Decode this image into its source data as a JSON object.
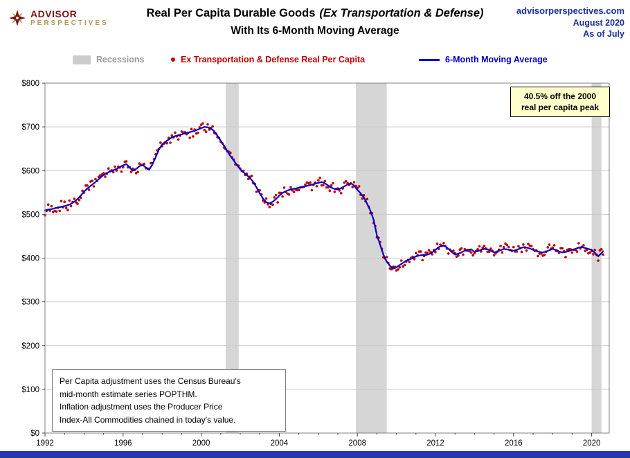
{
  "header": {
    "logo_line1": "ADVISOR",
    "logo_line2": "PERSPECTIVES",
    "title_main": "Real Per Capita Durable Goods",
    "title_italic": "(Ex Transportation & Defense)",
    "title_line2": "With Its 6-Month Moving Average",
    "site": "advisorperspectives.com",
    "date": "August 2020",
    "asof": "As of July"
  },
  "legend": {
    "recessions": "Recessions",
    "series_scatter": "Ex Transportation & Defense Real Per Capita",
    "series_line": "6-Month Moving Average"
  },
  "annotation": {
    "line1": "40.5% off the 2000",
    "line2": "real per capita peak"
  },
  "info_box": {
    "lines": [
      "Per Capita adjustment uses the Census Bureau's",
      "mid-month estimate series POPTHM.",
      "Inflation adjustment uses the Producer Price",
      "Index-All Commodities chained in today's value."
    ]
  },
  "colors": {
    "scatter": "#c00000",
    "ma_line": "#0000cc",
    "recession_band": "#d6d6d6",
    "grid": "#c9c9c9",
    "plot_border": "#7f7f7f",
    "annotation_bg": "#ffffcc",
    "header_blue": "#1b309c",
    "brand_red": "#7b1416",
    "brand_gold": "#b09a5b",
    "bottom_bar": "#2936b0"
  },
  "chart_data": {
    "type": "scatter",
    "title": "Real Per Capita Durable Goods (Ex Transportation & Defense) With Its 6-Month Moving Average",
    "xlabel": "",
    "ylabel": "",
    "xlim": [
      1992,
      2020.9
    ],
    "ylim": [
      0,
      800
    ],
    "ytick_step": 100,
    "yticklabels": [
      "$0",
      "$100",
      "$200",
      "$300",
      "$400",
      "$500",
      "$600",
      "$700",
      "$800"
    ],
    "xticks": [
      1992,
      1996,
      2000,
      2004,
      2008,
      2012,
      2016,
      2020
    ],
    "xticklabels": [
      "1992",
      "1996",
      "2000",
      "2004",
      "2008",
      "2012",
      "2016",
      "2020"
    ],
    "grid": "horizontal",
    "legend_position": "top",
    "recessions": [
      [
        2001.25,
        2001.92
      ],
      [
        2007.92,
        2009.5
      ],
      [
        2020.0,
        2020.5
      ]
    ],
    "annotation": "40.5% off the 2000 real per capita peak",
    "peak": {
      "year": 2000,
      "value": 700
    },
    "last": {
      "date": "2020-07",
      "value": 416
    },
    "series": [
      {
        "name": "Ex Transportation & Defense Real Per Capita",
        "type": "scatter",
        "color": "#c00000",
        "interval": "monthly",
        "noise_amplitude": 10
      },
      {
        "name": "6-Month Moving Average",
        "type": "line",
        "color": "#0000cc",
        "points": [
          [
            1992.0,
            509
          ],
          [
            1992.17,
            511
          ],
          [
            1992.33,
            512
          ],
          [
            1992.5,
            514
          ],
          [
            1992.67,
            516
          ],
          [
            1992.83,
            517
          ],
          [
            1993.0,
            519
          ],
          [
            1993.17,
            521
          ],
          [
            1993.33,
            524
          ],
          [
            1993.5,
            529
          ],
          [
            1993.67,
            535
          ],
          [
            1993.83,
            543
          ],
          [
            1994.0,
            552
          ],
          [
            1994.17,
            559
          ],
          [
            1994.33,
            565
          ],
          [
            1994.5,
            571
          ],
          [
            1994.67,
            577
          ],
          [
            1994.83,
            584
          ],
          [
            1995.0,
            590
          ],
          [
            1995.17,
            595
          ],
          [
            1995.33,
            598
          ],
          [
            1995.5,
            601
          ],
          [
            1995.67,
            604
          ],
          [
            1995.83,
            608
          ],
          [
            1996.0,
            612
          ],
          [
            1996.17,
            615
          ],
          [
            1996.33,
            607
          ],
          [
            1996.5,
            600
          ],
          [
            1996.67,
            604
          ],
          [
            1996.83,
            610
          ],
          [
            1997.0,
            613
          ],
          [
            1997.17,
            607
          ],
          [
            1997.33,
            602
          ],
          [
            1997.5,
            614
          ],
          [
            1997.67,
            631
          ],
          [
            1997.83,
            648
          ],
          [
            1998.0,
            660
          ],
          [
            1998.17,
            666
          ],
          [
            1998.33,
            671
          ],
          [
            1998.5,
            676
          ],
          [
            1998.67,
            679
          ],
          [
            1998.83,
            681
          ],
          [
            1999.0,
            683
          ],
          [
            1999.17,
            685
          ],
          [
            1999.33,
            687
          ],
          [
            1999.5,
            689
          ],
          [
            1999.67,
            691
          ],
          [
            1999.83,
            694
          ],
          [
            2000.0,
            697
          ],
          [
            2000.17,
            700
          ],
          [
            2000.33,
            699
          ],
          [
            2000.5,
            696
          ],
          [
            2000.67,
            690
          ],
          [
            2000.83,
            680
          ],
          [
            2001.0,
            668
          ],
          [
            2001.17,
            657
          ],
          [
            2001.33,
            645
          ],
          [
            2001.5,
            633
          ],
          [
            2001.67,
            623
          ],
          [
            2001.83,
            613
          ],
          [
            2002.0,
            603
          ],
          [
            2002.17,
            596
          ],
          [
            2002.33,
            590
          ],
          [
            2002.5,
            583
          ],
          [
            2002.67,
            574
          ],
          [
            2002.83,
            562
          ],
          [
            2003.0,
            548
          ],
          [
            2003.17,
            536
          ],
          [
            2003.33,
            528
          ],
          [
            2003.5,
            525
          ],
          [
            2003.67,
            529
          ],
          [
            2003.83,
            535
          ],
          [
            2004.0,
            543
          ],
          [
            2004.17,
            549
          ],
          [
            2004.33,
            553
          ],
          [
            2004.5,
            556
          ],
          [
            2004.67,
            558
          ],
          [
            2004.83,
            559
          ],
          [
            2005.0,
            561
          ],
          [
            2005.17,
            563
          ],
          [
            2005.33,
            564
          ],
          [
            2005.5,
            566
          ],
          [
            2005.67,
            568
          ],
          [
            2005.83,
            570
          ],
          [
            2006.0,
            572
          ],
          [
            2006.17,
            574
          ],
          [
            2006.33,
            571
          ],
          [
            2006.5,
            566
          ],
          [
            2006.67,
            561
          ],
          [
            2006.83,
            558
          ],
          [
            2007.0,
            557
          ],
          [
            2007.17,
            560
          ],
          [
            2007.33,
            564
          ],
          [
            2007.5,
            568
          ],
          [
            2007.67,
            571
          ],
          [
            2007.83,
            566
          ],
          [
            2008.0,
            556
          ],
          [
            2008.17,
            548
          ],
          [
            2008.33,
            539
          ],
          [
            2008.5,
            524
          ],
          [
            2008.67,
            508
          ],
          [
            2008.83,
            488
          ],
          [
            2009.0,
            452
          ],
          [
            2009.17,
            430
          ],
          [
            2009.33,
            408
          ],
          [
            2009.5,
            392
          ],
          [
            2009.67,
            382
          ],
          [
            2009.83,
            376
          ],
          [
            2010.0,
            379
          ],
          [
            2010.17,
            384
          ],
          [
            2010.33,
            389
          ],
          [
            2010.5,
            394
          ],
          [
            2010.67,
            397
          ],
          [
            2010.83,
            400
          ],
          [
            2011.0,
            404
          ],
          [
            2011.17,
            406
          ],
          [
            2011.33,
            407
          ],
          [
            2011.5,
            407
          ],
          [
            2011.67,
            409
          ],
          [
            2011.83,
            413
          ],
          [
            2012.0,
            419
          ],
          [
            2012.17,
            425
          ],
          [
            2012.33,
            429
          ],
          [
            2012.5,
            427
          ],
          [
            2012.67,
            421
          ],
          [
            2012.83,
            414
          ],
          [
            2013.0,
            408
          ],
          [
            2013.17,
            410
          ],
          [
            2013.33,
            413
          ],
          [
            2013.5,
            417
          ],
          [
            2013.67,
            419
          ],
          [
            2013.83,
            420
          ],
          [
            2014.0,
            414
          ],
          [
            2014.17,
            416
          ],
          [
            2014.33,
            419
          ],
          [
            2014.5,
            421
          ],
          [
            2014.67,
            420
          ],
          [
            2014.83,
            417
          ],
          [
            2015.0,
            413
          ],
          [
            2015.17,
            415
          ],
          [
            2015.33,
            418
          ],
          [
            2015.5,
            421
          ],
          [
            2015.67,
            420
          ],
          [
            2015.83,
            418
          ],
          [
            2016.0,
            417
          ],
          [
            2016.17,
            419
          ],
          [
            2016.33,
            422
          ],
          [
            2016.5,
            425
          ],
          [
            2016.67,
            424
          ],
          [
            2016.83,
            422
          ],
          [
            2017.0,
            419
          ],
          [
            2017.17,
            416
          ],
          [
            2017.33,
            414
          ],
          [
            2017.5,
            413
          ],
          [
            2017.67,
            415
          ],
          [
            2017.83,
            418
          ],
          [
            2018.0,
            421
          ],
          [
            2018.17,
            419
          ],
          [
            2018.33,
            415
          ],
          [
            2018.5,
            413
          ],
          [
            2018.67,
            414
          ],
          [
            2018.83,
            416
          ],
          [
            2019.0,
            419
          ],
          [
            2019.17,
            421
          ],
          [
            2019.33,
            424
          ],
          [
            2019.5,
            425
          ],
          [
            2019.67,
            423
          ],
          [
            2019.83,
            421
          ],
          [
            2020.0,
            419
          ],
          [
            2020.17,
            412
          ],
          [
            2020.33,
            404
          ],
          [
            2020.5,
            411
          ],
          [
            2020.58,
            416
          ]
        ]
      }
    ]
  }
}
